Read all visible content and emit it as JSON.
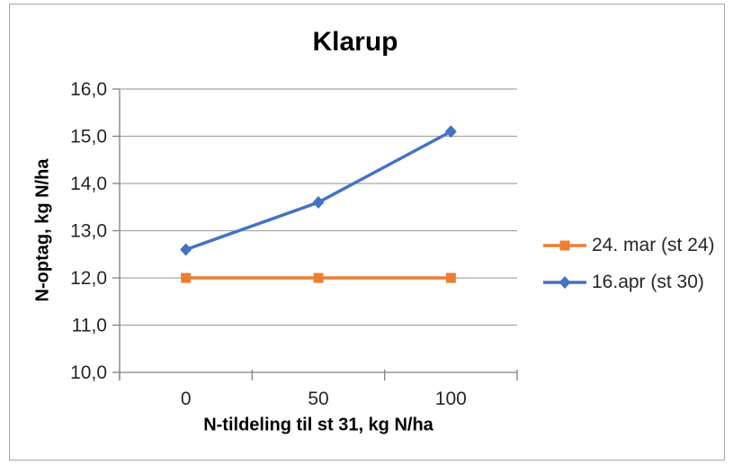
{
  "chart_data": {
    "type": "line",
    "title": "Klarup",
    "xlabel": "N-tildeling til st 31, kg N/ha",
    "ylabel": "N-optag, kg N/ha",
    "categories": [
      "0",
      "50",
      "100"
    ],
    "series": [
      {
        "name": "24. mar (st 24)",
        "values": [
          12.0,
          12.0,
          12.0
        ],
        "color": "#ED7D31",
        "marker": "square"
      },
      {
        "name": "16.apr (st 30)",
        "values": [
          12.6,
          13.6,
          15.1
        ],
        "color": "#4472C4",
        "marker": "diamond"
      }
    ],
    "ylim": [
      10.0,
      16.0
    ],
    "ytick_step": 1.0,
    "ytick_labels": [
      "10,0",
      "11,0",
      "12,0",
      "13,0",
      "14,0",
      "15,0",
      "16,0"
    ],
    "grid": true,
    "legend_position": "right"
  },
  "colors": {
    "background": "#ffffff",
    "chart_border": "#a6a6a6",
    "gridline": "#a6a6a6",
    "axis": "#808080",
    "tick_text": "#262626",
    "title_text": "#000000"
  }
}
